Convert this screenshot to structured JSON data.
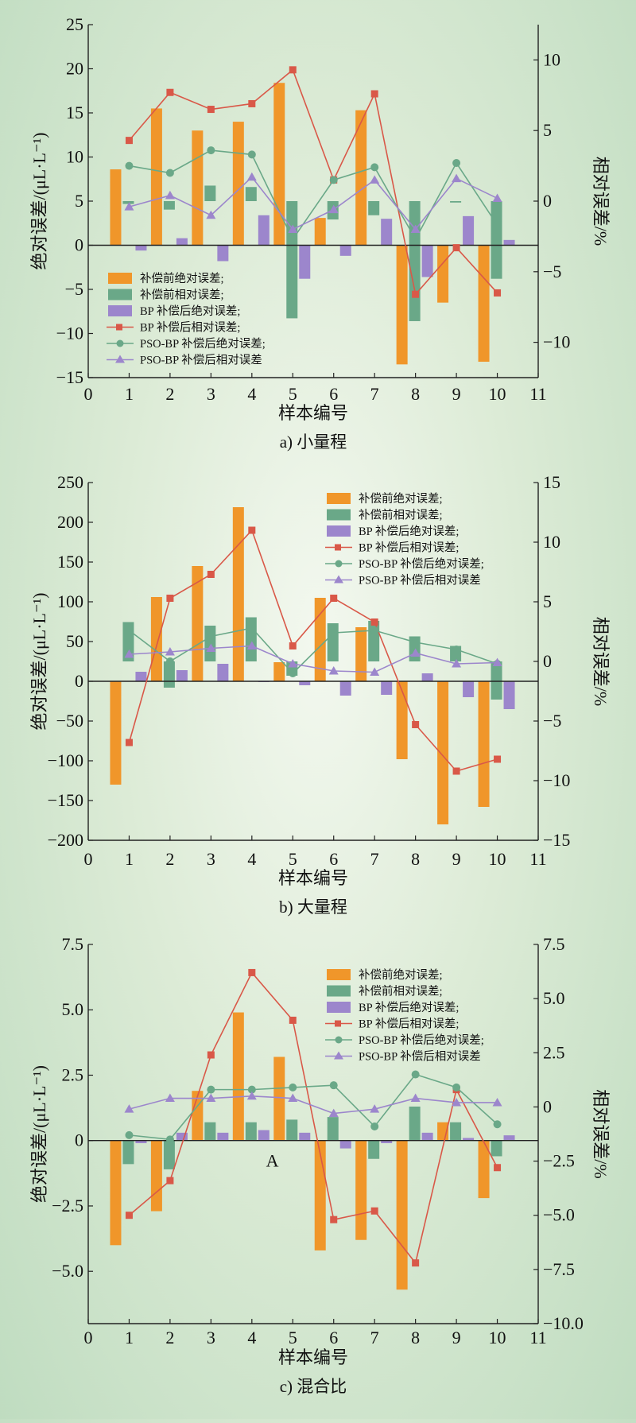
{
  "colors": {
    "before_abs": "#f0962a",
    "before_rel": "#6aa888",
    "bp_abs": "#9c86cc",
    "bp_rel": "#d95848",
    "pso_abs": "#6aa888",
    "pso_rel": "#9c86cc"
  },
  "chart_data": [
    {
      "type": "bar",
      "caption": "a) 小量程",
      "xlabel": "样本编号",
      "ylabel": "绝对误差/(μL·L⁻¹)",
      "y2label": "相对误差/%",
      "x_ticks": [
        "0",
        "1",
        "2",
        "3",
        "4",
        "5",
        "6",
        "7",
        "8",
        "9",
        "10",
        "11"
      ],
      "xlim": [
        0,
        11
      ],
      "ylim": [
        -15,
        25
      ],
      "y_ticks": [
        25,
        20,
        15,
        10,
        5,
        0,
        -5,
        -10,
        -15
      ],
      "y_tick_labels": [
        "25",
        "20",
        "15",
        "10",
        "5",
        "0",
        "−5",
        "−10",
        "−15"
      ],
      "y2lim": [
        -12.5,
        12.5
      ],
      "y2_ticks": [
        10,
        5,
        0,
        -5,
        -10
      ],
      "y2_tick_labels": [
        "10",
        "5",
        "0",
        "−5",
        "−10"
      ],
      "legend_position": "lower-left",
      "categories": [
        1,
        2,
        3,
        4,
        5,
        6,
        7,
        8,
        9,
        10
      ],
      "series": [
        {
          "name": "补偿前绝对误差;",
          "kind": "bar",
          "axis": "left",
          "values": [
            8.6,
            15.5,
            13.0,
            14.0,
            18.4,
            3.1,
            15.3,
            -13.5,
            -6.5,
            -13.2
          ]
        },
        {
          "name": "补偿前相对误差;",
          "kind": "bar",
          "axis": "right",
          "values": [
            -0.2,
            -0.6,
            1.1,
            1.0,
            -8.3,
            -1.3,
            -1.0,
            -8.5,
            -0.1,
            -5.5
          ]
        },
        {
          "name": "BP 补偿后绝对误差;",
          "kind": "bar",
          "axis": "left",
          "values": [
            -0.6,
            0.8,
            -1.8,
            3.4,
            -3.8,
            -1.2,
            3.0,
            -3.6,
            3.3,
            0.6
          ]
        },
        {
          "name": "BP 补偿后相对误差;",
          "kind": "line",
          "marker": "square",
          "axis": "right",
          "values": [
            4.3,
            7.7,
            6.5,
            6.9,
            9.3,
            1.5,
            7.6,
            -6.6,
            -3.3,
            -6.5
          ]
        },
        {
          "name": "PSO-BP 补偿后绝对误差;",
          "kind": "line",
          "marker": "circle",
          "axis": "right",
          "values": [
            2.5,
            2.0,
            3.6,
            3.3,
            -2.7,
            1.5,
            2.4,
            -2.7,
            2.7,
            -1.7
          ]
        },
        {
          "name": "PSO-BP 补偿后相对误差",
          "kind": "line",
          "marker": "triangle",
          "axis": "right",
          "values": [
            -0.4,
            0.4,
            -1.0,
            1.7,
            -2.0,
            -0.6,
            1.5,
            -2.0,
            1.6,
            0.2
          ]
        }
      ]
    },
    {
      "type": "bar",
      "caption": "b) 大量程",
      "xlabel": "样本编号",
      "ylabel": "绝对误差/(μL·L⁻¹)",
      "y2label": "相对误差/%",
      "x_ticks": [
        "0",
        "1",
        "2",
        "3",
        "4",
        "5",
        "6",
        "7",
        "8",
        "9",
        "10",
        "11"
      ],
      "xlim": [
        0,
        11
      ],
      "ylim": [
        -200,
        250
      ],
      "y_ticks": [
        250,
        200,
        150,
        100,
        50,
        0,
        -50,
        -100,
        -150,
        -200
      ],
      "y_tick_labels": [
        "250",
        "200",
        "150",
        "100",
        "50",
        "0",
        "−50",
        "−100",
        "−150",
        "−200"
      ],
      "y2lim": [
        -15,
        15
      ],
      "y2_ticks": [
        15,
        10,
        5,
        0,
        -5,
        -10,
        -15
      ],
      "y2_tick_labels": [
        "15",
        "10",
        "5",
        "0",
        "−5",
        "−10",
        "−15"
      ],
      "legend_position": "top-right",
      "categories": [
        1,
        2,
        3,
        4,
        5,
        6,
        7,
        8,
        9,
        10
      ],
      "series": [
        {
          "name": "补偿前绝对误差;",
          "kind": "bar",
          "axis": "left",
          "values": [
            -130,
            106,
            145,
            219,
            24,
            105,
            68,
            -98,
            -180,
            -158
          ]
        },
        {
          "name": "补偿前相对误差;",
          "kind": "bar",
          "axis": "right",
          "values": [
            3.3,
            -2.2,
            3.0,
            3.7,
            -1.2,
            3.2,
            3.4,
            2.1,
            1.3,
            -3.2
          ]
        },
        {
          "name": "BP 补偿后绝对误差;",
          "kind": "bar",
          "axis": "left",
          "values": [
            12,
            14,
            22,
            -1,
            -5,
            -18,
            -17,
            10,
            -20,
            -35
          ]
        },
        {
          "name": "BP 补偿后相对误差;",
          "kind": "line",
          "marker": "square",
          "axis": "right",
          "values": [
            -6.8,
            5.3,
            7.3,
            11.0,
            1.3,
            5.3,
            3.3,
            -5.3,
            -9.2,
            -8.2
          ]
        },
        {
          "name": "PSO-BP 补偿后绝对误差;",
          "kind": "line",
          "marker": "circle",
          "axis": "right",
          "values": [
            2.6,
            0.0,
            2.1,
            2.8,
            -1.0,
            2.4,
            2.6,
            1.6,
            1.0,
            -0.2
          ]
        },
        {
          "name": "PSO-BP 补偿后相对误差",
          "kind": "line",
          "marker": "triangle",
          "axis": "right",
          "values": [
            0.6,
            0.8,
            1.1,
            1.3,
            -0.2,
            -0.8,
            -0.9,
            0.7,
            -0.2,
            -0.1
          ]
        }
      ]
    },
    {
      "type": "bar",
      "caption": "c) 混合比",
      "xlabel": "样本编号",
      "ylabel": "绝对误差/(μL·L⁻¹)",
      "y2label": "相对误差/%",
      "annotation": "A",
      "x_ticks": [
        "0",
        "1",
        "2",
        "3",
        "4",
        "5",
        "6",
        "7",
        "8",
        "9",
        "10",
        "11"
      ],
      "xlim": [
        0,
        11
      ],
      "ylim": [
        -7.0,
        7.5
      ],
      "y_ticks": [
        7.5,
        5.0,
        2.5,
        0,
        -2.5,
        -5.0
      ],
      "y_tick_labels": [
        "7.5",
        "5.0",
        "2.5",
        "0",
        "−2.5",
        "−5.0"
      ],
      "y2lim": [
        -10,
        7.5
      ],
      "y2_ticks": [
        7.5,
        5.0,
        2.5,
        0,
        -2.5,
        -5.0,
        -7.5,
        -10.0
      ],
      "y2_tick_labels": [
        "7.5",
        "5.0",
        "2.5",
        "0",
        "−2.5",
        "−5.0",
        "−7.5",
        "−10.0"
      ],
      "legend_position": "top-right",
      "categories": [
        1,
        2,
        3,
        4,
        5,
        6,
        7,
        8,
        9,
        10
      ],
      "series": [
        {
          "name": "补偿前绝对误差;",
          "kind": "bar",
          "axis": "left",
          "values": [
            -4.0,
            -2.7,
            1.9,
            4.9,
            3.2,
            -4.2,
            -3.8,
            -5.7,
            0.7,
            -2.2
          ]
        },
        {
          "name": "补偿前相对误差;",
          "kind": "bar",
          "axis": "left",
          "values": [
            -0.9,
            -1.1,
            0.7,
            0.7,
            0.8,
            0.9,
            -0.7,
            1.3,
            0.7,
            -0.6
          ]
        },
        {
          "name": "BP 补偿后绝对误差;",
          "kind": "bar",
          "axis": "left",
          "values": [
            -0.1,
            0.3,
            0.3,
            0.4,
            0.3,
            -0.3,
            -0.1,
            0.3,
            0.1,
            0.2
          ]
        },
        {
          "name": "BP 补偿后相对误差;",
          "kind": "line",
          "marker": "square",
          "axis": "right",
          "values": [
            -5.0,
            -3.4,
            2.4,
            6.2,
            4.0,
            -5.2,
            -4.8,
            -7.2,
            0.8,
            -2.8
          ]
        },
        {
          "name": "PSO-BP 补偿后绝对误差;",
          "kind": "line",
          "marker": "circle",
          "axis": "right",
          "values": [
            -1.3,
            -1.5,
            0.8,
            0.8,
            0.9,
            1.0,
            -0.9,
            1.5,
            0.9,
            -0.8
          ]
        },
        {
          "name": "PSO-BP 补偿后相对误差",
          "kind": "line",
          "marker": "triangle",
          "axis": "right",
          "values": [
            -0.1,
            0.4,
            0.4,
            0.5,
            0.4,
            -0.3,
            -0.1,
            0.4,
            0.2,
            0.2
          ]
        }
      ]
    }
  ]
}
